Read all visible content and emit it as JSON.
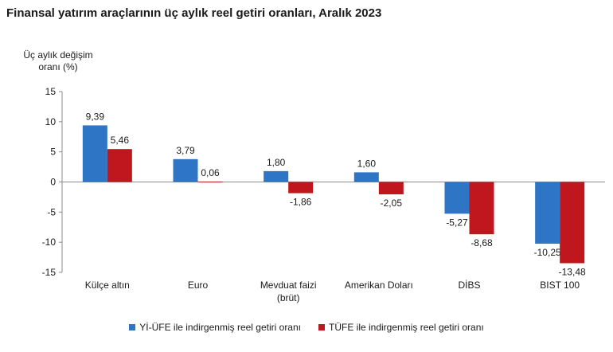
{
  "chart_data": {
    "type": "bar",
    "title": "Finansal yatırım araçlarının üç aylık reel getiri oranları, Aralık 2023",
    "ylabel_lines": [
      "Üç aylık değişim",
      "oranı (%)"
    ],
    "xlabel": "",
    "ylim": [
      -15,
      15
    ],
    "yticks": [
      15,
      10,
      5,
      0,
      -5,
      -10,
      -15
    ],
    "categories": [
      [
        "Külçe altın"
      ],
      [
        "Euro"
      ],
      [
        "Mevduat faizi",
        "(brüt)"
      ],
      [
        "Amerikan Doları"
      ],
      [
        "DİBS"
      ],
      [
        "BIST 100"
      ]
    ],
    "series": [
      {
        "name": "Yİ-ÜFE ile indirgenmiş reel getiri oranı",
        "color": "#2e75c6",
        "values": [
          9.39,
          3.79,
          1.8,
          1.6,
          -5.27,
          -10.25
        ],
        "labels": [
          "9,39",
          "3,79",
          "1,80",
          "1,60",
          "-5,27",
          "-10,25"
        ]
      },
      {
        "name": "TÜFE ile indirgenmiş reel getiri oranı",
        "color": "#c0161d",
        "values": [
          5.46,
          0.06,
          -1.86,
          -2.05,
          -8.68,
          -13.48
        ],
        "labels": [
          "5,46",
          "0,06",
          "-1,86",
          "-2,05",
          "-8,68",
          "-13,48"
        ]
      }
    ],
    "legend_position": "bottom"
  }
}
